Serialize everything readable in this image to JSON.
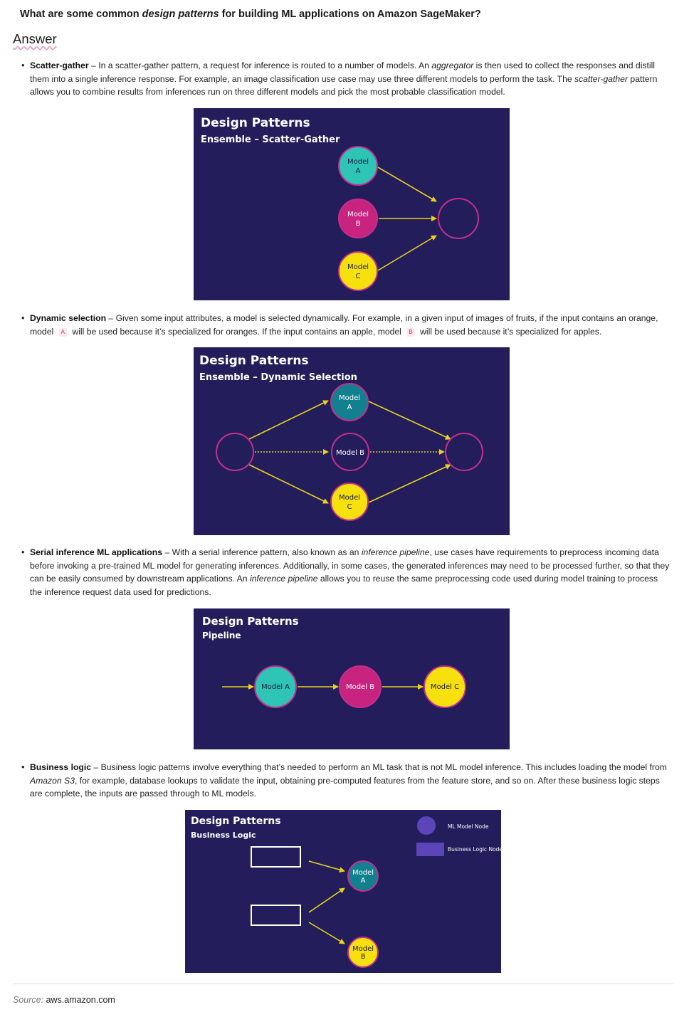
{
  "question": {
    "prefix": "What are some common ",
    "emphasis": "design patterns",
    "suffix": " for building ML applications on Amazon SageMaker?"
  },
  "answer_heading": "Answer",
  "items": [
    {
      "term": "Scatter-gather",
      "segments": [
        " – In a scatter-gather pattern, a request for inference is routed to a number of models. An ",
        "aggregator",
        " is then used to collect the responses and distill them into a single inference response. For example, an image classification use case may use three different models to perform the task. The ",
        "scatter-gather",
        " pattern allows you to combine results from inferences run on three different models and pick the most probable classification model."
      ],
      "diagram": {
        "title": "Design Patterns",
        "subtitle": "Ensemble – Scatter-Gather",
        "nodes": [
          {
            "line1": "Model",
            "line2": "A"
          },
          {
            "line1": "Model",
            "line2": "B"
          },
          {
            "line1": "Model",
            "line2": "C"
          }
        ]
      }
    },
    {
      "term": "Dynamic selection",
      "segments": [
        " – Given some input attributes, a model is selected dynamically. For example, in a given input of images of fruits, if the input contains an orange, model ",
        "A",
        " will be used because it’s specialized for oranges. If the input contains an apple, model ",
        "B",
        " will be used because it’s specialized for apples."
      ],
      "diagram": {
        "title": "Design Patterns",
        "subtitle": "Ensemble – Dynamic Selection",
        "nodes": [
          {
            "line1": "Model",
            "line2": "A"
          },
          {
            "line1": "Model B"
          },
          {
            "line1": "Model",
            "line2": "C"
          }
        ]
      }
    },
    {
      "term": "Serial inference ML applications",
      "segments": [
        " – With a serial inference pattern, also known as an ",
        "inference pipeline",
        ", use cases have requirements to preprocess incoming data before invoking a pre-trained ML model for generating inferences. Additionally, in some cases, the generated inferences may need to be processed further, so that they can be easily consumed by downstream applications. An ",
        "inference pipeline",
        " allows you to reuse the same preprocessing code used during model training to process the inference request data used for predictions."
      ],
      "diagram": {
        "title": "Design Patterns",
        "subtitle": "Pipeline",
        "nodes": [
          {
            "line1": "Model A"
          },
          {
            "line1": "Model B"
          },
          {
            "line1": "Model C"
          }
        ]
      }
    },
    {
      "term": "Business logic",
      "segments": [
        " – Business logic patterns involve everything that’s needed to perform an ML task that is not ML model inference. This includes loading the model from ",
        "Amazon S3",
        ", for example, database lookups to validate the input, obtaining pre-computed features from the feature store, and so on. After these business logic steps are complete, the inputs are passed through to ML models."
      ],
      "diagram": {
        "title": "Design Patterns",
        "subtitle": "Business Logic",
        "legend": {
          "node": "ML Model Node",
          "logic": "Business Logic Node"
        },
        "nodes": [
          {
            "line1": "Model",
            "line2": "A"
          },
          {
            "line1": "Model",
            "line2": "B"
          }
        ]
      }
    }
  ],
  "source": {
    "label": "Source:",
    "value": "aws.amazon.com"
  },
  "colors": {
    "diagram_bg": "#241d5c",
    "teal": "#2ec4b6",
    "teal_dark": "#12808f",
    "magenta": "#c8237f",
    "yellow": "#f6e00e",
    "arrow": "#e6d41a",
    "empty_ring": "#c42f8c",
    "legend_purple": "#5b45b8"
  }
}
